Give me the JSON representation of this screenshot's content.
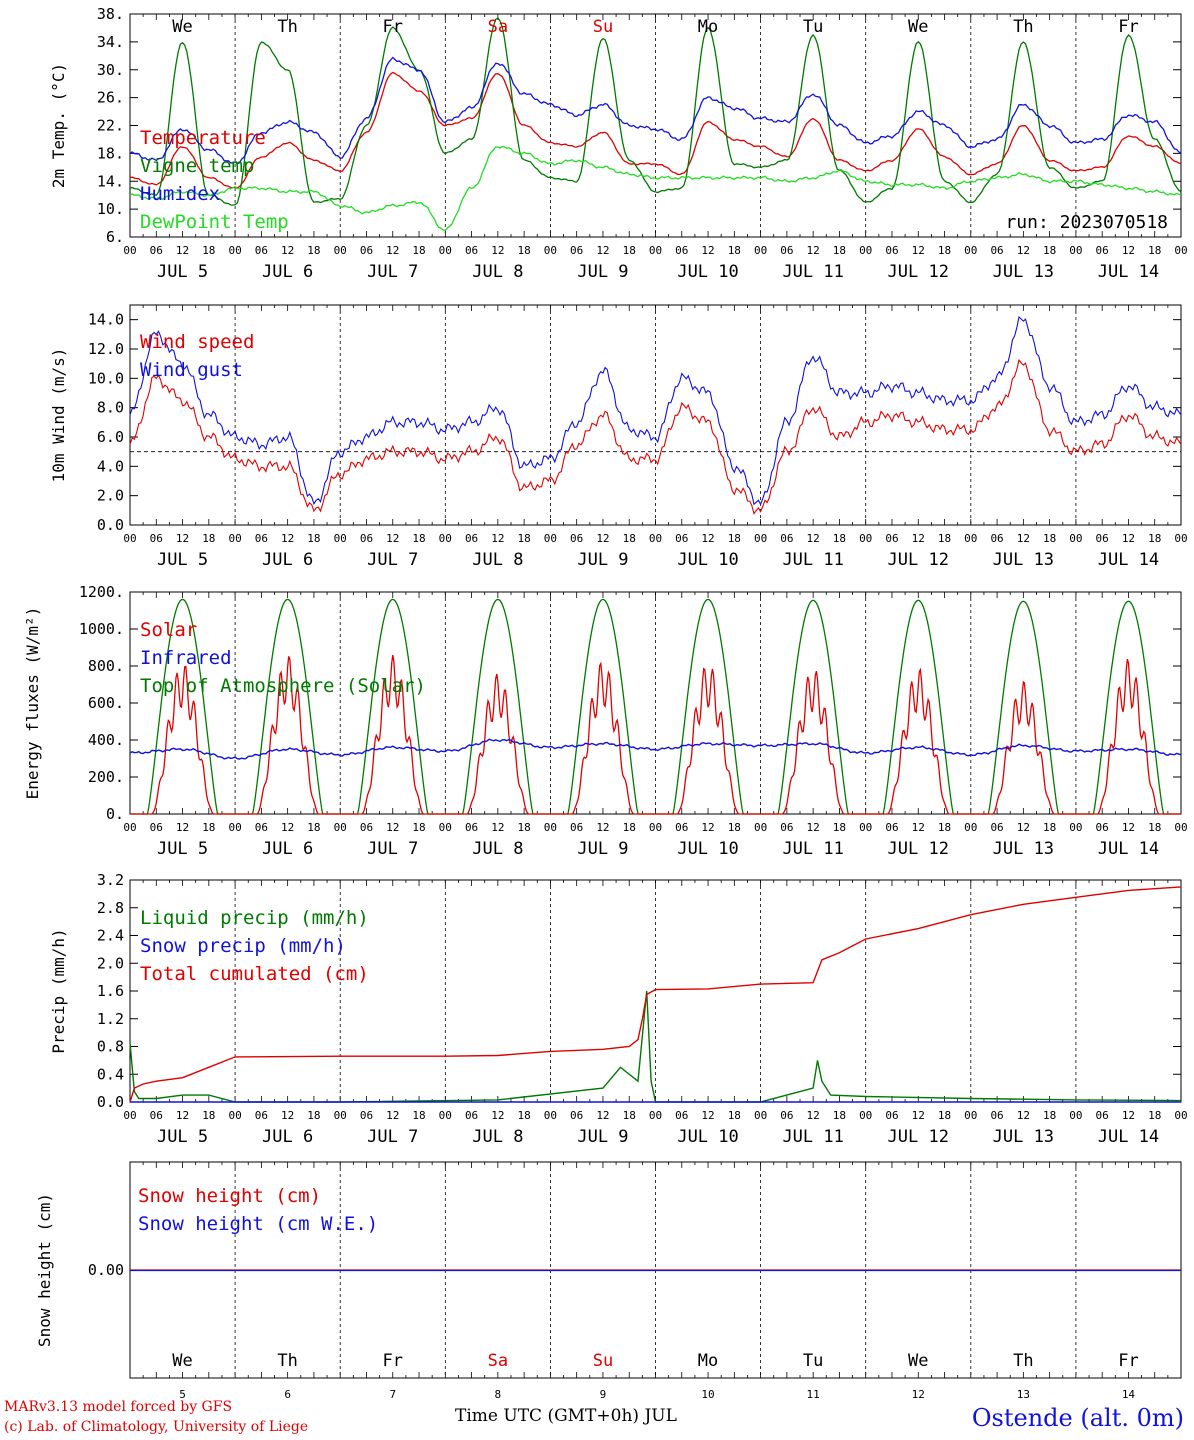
{
  "station": {
    "label": "Ostende (alt. 0m)"
  },
  "credits": {
    "line1": "MARv3.13 model forced by GFS",
    "line2": "(c) Lab. of Climatology, University of Liege"
  },
  "x_axis": {
    "title": "Time UTC (GMT+0h) JUL",
    "hour_ticks": [
      "00",
      "06",
      "12",
      "18"
    ],
    "days": [
      "5",
      "6",
      "7",
      "8",
      "9",
      "10",
      "11",
      "12",
      "13",
      "14"
    ],
    "date_labels": [
      "JUL  5",
      "JUL  6",
      "JUL  7",
      "JUL  8",
      "JUL  9",
      "JUL 10",
      "JUL 11",
      "JUL 12",
      "JUL 13",
      "JUL 14"
    ],
    "weekdays": [
      "We",
      "Th",
      "Fr",
      "Sa",
      "Su",
      "Mo",
      "Tu",
      "We",
      "Th",
      "Fr"
    ],
    "weekend_color": "#e00000"
  },
  "chart_data": [
    {
      "type": "line",
      "id": "temperature",
      "ylabel": "2m Temp. (°C)",
      "ylim": [
        6,
        38
      ],
      "yticks": [
        6,
        10,
        14,
        18,
        22,
        26,
        30,
        34,
        38
      ],
      "ytick_labels": [
        "6.",
        "10.",
        "14.",
        "18.",
        "22.",
        "26.",
        "30.",
        "34.",
        "38."
      ],
      "annotation": "run: 2023070518",
      "x_unit": "hours since JUL 5 00 UTC",
      "series": [
        {
          "name": "Temperature",
          "color": "#e00000",
          "x": [
            0,
            6,
            12,
            18,
            24,
            30,
            36,
            42,
            48,
            54,
            60,
            66,
            72,
            78,
            84,
            90,
            96,
            102,
            108,
            114,
            120,
            126,
            132,
            138,
            144,
            150,
            156,
            162,
            168,
            174,
            180,
            186,
            192,
            198,
            204,
            210,
            216,
            222,
            228,
            234,
            240
          ],
          "y": [
            14.5,
            13.5,
            19.0,
            14.5,
            13.0,
            17.5,
            19.5,
            17.0,
            15.5,
            21.0,
            29.5,
            27.0,
            22.0,
            23.0,
            29.5,
            22.0,
            19.5,
            19.0,
            21.0,
            16.5,
            16.5,
            15.0,
            22.5,
            20.0,
            19.0,
            17.5,
            23.0,
            17.0,
            15.5,
            17.0,
            21.5,
            17.5,
            15.0,
            16.5,
            22.0,
            17.0,
            15.5,
            16.0,
            20.5,
            19.0,
            16.5
          ]
        },
        {
          "name": "Vigne temp",
          "color": "#007a00",
          "x": [
            0,
            6,
            12,
            18,
            24,
            30,
            36,
            42,
            48,
            54,
            60,
            66,
            72,
            78,
            84,
            90,
            96,
            102,
            108,
            114,
            120,
            126,
            132,
            138,
            144,
            150,
            156,
            162,
            168,
            174,
            180,
            186,
            192,
            198,
            204,
            210,
            216,
            222,
            228,
            234,
            240
          ],
          "y": [
            13.0,
            12.0,
            34.0,
            12.0,
            10.5,
            34.0,
            30.0,
            11.0,
            11.5,
            22.0,
            36.0,
            30.0,
            18.0,
            20.0,
            37.5,
            17.0,
            14.5,
            14.0,
            34.5,
            17.0,
            12.5,
            13.0,
            36.0,
            16.5,
            16.0,
            17.0,
            35.0,
            15.5,
            11.0,
            13.0,
            34.0,
            14.0,
            11.0,
            15.0,
            34.0,
            16.0,
            13.0,
            14.0,
            35.0,
            20.0,
            12.5
          ]
        },
        {
          "name": "Humidex",
          "color": "#1010e0",
          "x": [
            0,
            6,
            12,
            18,
            24,
            30,
            36,
            42,
            48,
            54,
            60,
            66,
            72,
            78,
            84,
            90,
            96,
            102,
            108,
            114,
            120,
            126,
            132,
            138,
            144,
            150,
            156,
            162,
            168,
            174,
            180,
            186,
            192,
            198,
            204,
            210,
            216,
            222,
            228,
            234,
            240
          ],
          "y": [
            18.0,
            17.0,
            21.5,
            18.5,
            16.5,
            21.0,
            22.5,
            21.0,
            17.5,
            23.0,
            31.5,
            30.0,
            22.5,
            24.5,
            31.0,
            26.5,
            25.0,
            23.5,
            25.0,
            22.0,
            21.5,
            20.0,
            26.0,
            24.5,
            23.0,
            22.5,
            26.5,
            22.0,
            19.5,
            20.5,
            24.0,
            22.0,
            19.0,
            20.0,
            25.0,
            22.0,
            19.5,
            20.0,
            23.5,
            22.5,
            18.0
          ]
        },
        {
          "name": "DewPoint Temp",
          "color": "#22dd22",
          "x": [
            0,
            6,
            12,
            18,
            24,
            30,
            36,
            42,
            48,
            54,
            60,
            66,
            72,
            78,
            84,
            90,
            96,
            102,
            108,
            114,
            120,
            126,
            132,
            138,
            144,
            150,
            156,
            162,
            168,
            174,
            180,
            186,
            192,
            198,
            204,
            210,
            216,
            222,
            228,
            234,
            240
          ],
          "y": [
            12.0,
            11.5,
            12.5,
            12.0,
            13.0,
            13.0,
            12.5,
            12.5,
            10.5,
            9.5,
            10.5,
            11.0,
            7.0,
            13.0,
            19.0,
            18.0,
            16.5,
            17.0,
            16.0,
            15.0,
            14.5,
            14.5,
            14.5,
            14.5,
            14.5,
            14.0,
            14.5,
            15.5,
            14.0,
            13.5,
            13.5,
            13.0,
            14.0,
            14.5,
            15.0,
            14.0,
            14.0,
            13.5,
            13.0,
            12.5,
            12.0
          ]
        }
      ]
    },
    {
      "type": "line",
      "id": "wind",
      "ylabel": "10m Wind (m/s)",
      "ylim": [
        0,
        15
      ],
      "yticks": [
        0,
        2,
        4,
        6,
        8,
        10,
        12,
        14
      ],
      "ytick_labels": [
        "0.0",
        "2.0",
        "4.0",
        "6.0",
        "8.0",
        "10.0",
        "12.0",
        "14.0"
      ],
      "reference_line": 5,
      "x_unit": "hours since JUL 5 00 UTC",
      "series": [
        {
          "name": "Wind speed",
          "color": "#e00000",
          "x": [
            0,
            6,
            12,
            18,
            24,
            30,
            36,
            42,
            48,
            54,
            60,
            66,
            72,
            78,
            84,
            90,
            96,
            102,
            108,
            114,
            120,
            126,
            132,
            138,
            144,
            150,
            156,
            162,
            168,
            174,
            180,
            186,
            192,
            198,
            204,
            210,
            216,
            222,
            228,
            234,
            240
          ],
          "y": [
            5.5,
            10.0,
            8.5,
            6.0,
            4.5,
            4.0,
            4.0,
            1.0,
            3.5,
            4.5,
            5.0,
            5.0,
            4.5,
            5.0,
            6.0,
            2.5,
            3.0,
            5.5,
            7.5,
            4.5,
            4.5,
            8.0,
            7.0,
            2.5,
            1.0,
            5.0,
            8.0,
            6.0,
            7.0,
            7.5,
            7.0,
            6.5,
            6.5,
            8.0,
            11.0,
            6.5,
            5.0,
            5.5,
            7.5,
            6.0,
            5.5
          ]
        },
        {
          "name": "Wind gust",
          "color": "#1010e0",
          "x": [
            0,
            6,
            12,
            18,
            24,
            30,
            36,
            42,
            48,
            54,
            60,
            66,
            72,
            78,
            84,
            90,
            96,
            102,
            108,
            114,
            120,
            126,
            132,
            138,
            144,
            150,
            156,
            162,
            168,
            174,
            180,
            186,
            192,
            198,
            204,
            210,
            216,
            222,
            228,
            234,
            240
          ],
          "y": [
            7.5,
            13.0,
            11.0,
            7.5,
            6.0,
            5.5,
            6.0,
            1.5,
            5.0,
            6.0,
            7.0,
            7.0,
            6.5,
            7.0,
            8.0,
            4.0,
            4.5,
            7.0,
            10.5,
            6.5,
            6.0,
            10.0,
            9.0,
            4.0,
            1.5,
            7.0,
            11.5,
            9.0,
            9.0,
            9.5,
            9.0,
            8.5,
            8.5,
            10.0,
            14.0,
            9.5,
            7.0,
            7.5,
            9.5,
            8.0,
            7.5
          ]
        }
      ]
    },
    {
      "type": "line",
      "id": "energy",
      "ylabel": "Energy fluxes (W/m²)",
      "ylim": [
        0,
        1200
      ],
      "yticks": [
        0,
        200,
        400,
        600,
        800,
        1000,
        1200
      ],
      "ytick_labels": [
        "0.",
        "200.",
        "400.",
        "600.",
        "800.",
        "1000.",
        "1200."
      ],
      "x_unit": "hours since JUL 5 00 UTC",
      "series": [
        {
          "name": "Solar",
          "color": "#e00000",
          "peaks": [
            820,
            860,
            860,
            760,
            830,
            820,
            790,
            790,
            720,
            840
          ]
        },
        {
          "name": "Infrared",
          "color": "#1010e0",
          "x": [
            0,
            12,
            24,
            36,
            48,
            60,
            72,
            84,
            96,
            108,
            120,
            132,
            144,
            156,
            168,
            180,
            192,
            204,
            216,
            228,
            240
          ],
          "y": [
            330,
            350,
            300,
            350,
            320,
            360,
            340,
            400,
            360,
            380,
            350,
            380,
            370,
            380,
            330,
            360,
            320,
            370,
            340,
            350,
            320
          ]
        },
        {
          "name": "Top of Atmosphere (Solar)",
          "color": "#007a00",
          "peaks": [
            1160,
            1160,
            1160,
            1160,
            1160,
            1160,
            1155,
            1155,
            1150,
            1150
          ]
        }
      ]
    },
    {
      "type": "line",
      "id": "precip",
      "ylabel": "Precip (mm/h)",
      "ylim": [
        0,
        3.2
      ],
      "yticks": [
        0,
        0.4,
        0.8,
        1.2,
        1.6,
        2.0,
        2.4,
        2.8,
        3.2
      ],
      "ytick_labels": [
        "0.0",
        "0.4",
        "0.8",
        "1.2",
        "1.6",
        "2.0",
        "2.4",
        "2.8",
        "3.2"
      ],
      "x_unit": "hours since JUL 5 00 UTC",
      "series": [
        {
          "name": "Liquid precip (mm/h)",
          "color": "#007a00",
          "x": [
            0,
            1,
            2,
            3,
            6,
            12,
            18,
            24,
            48,
            84,
            108,
            112,
            116,
            118,
            119,
            120,
            144,
            156,
            157,
            158,
            160,
            168,
            192,
            216,
            240
          ],
          "y": [
            0.85,
            0.15,
            0.05,
            0.05,
            0.05,
            0.1,
            0.1,
            0.0,
            0.0,
            0.03,
            0.2,
            0.5,
            0.3,
            1.6,
            0.3,
            0.0,
            0.0,
            0.2,
            0.6,
            0.3,
            0.1,
            0.08,
            0.05,
            0.03,
            0.02
          ]
        },
        {
          "name": "Snow precip (mm/h)",
          "color": "#1010e0",
          "x": [
            0,
            240
          ],
          "y": [
            0,
            0
          ]
        },
        {
          "name": "Total cumulated (cm)",
          "color": "#e00000",
          "x": [
            0,
            1,
            3,
            6,
            12,
            18,
            24,
            48,
            72,
            84,
            90,
            96,
            108,
            114,
            116,
            117,
            118,
            120,
            132,
            144,
            156,
            158,
            162,
            168,
            180,
            192,
            204,
            216,
            228,
            240
          ],
          "y": [
            0.0,
            0.2,
            0.26,
            0.3,
            0.35,
            0.5,
            0.65,
            0.66,
            0.66,
            0.67,
            0.7,
            0.73,
            0.76,
            0.8,
            0.9,
            1.2,
            1.55,
            1.62,
            1.63,
            1.7,
            1.72,
            2.05,
            2.15,
            2.35,
            2.5,
            2.7,
            2.85,
            2.95,
            3.05,
            3.1
          ]
        }
      ]
    },
    {
      "type": "line",
      "id": "snow",
      "ylabel": "Snow height (cm)",
      "ytick_labels": [
        "0.00"
      ],
      "x_unit": "hours since JUL 5 00 UTC",
      "series": [
        {
          "name": "Snow height (cm)",
          "color": "#e00000",
          "x": [
            0,
            240
          ],
          "y": [
            0,
            0
          ]
        },
        {
          "name": "Snow height (cm W.E.)",
          "color": "#1010e0",
          "x": [
            0,
            240
          ],
          "y": [
            0,
            0
          ]
        }
      ]
    }
  ]
}
